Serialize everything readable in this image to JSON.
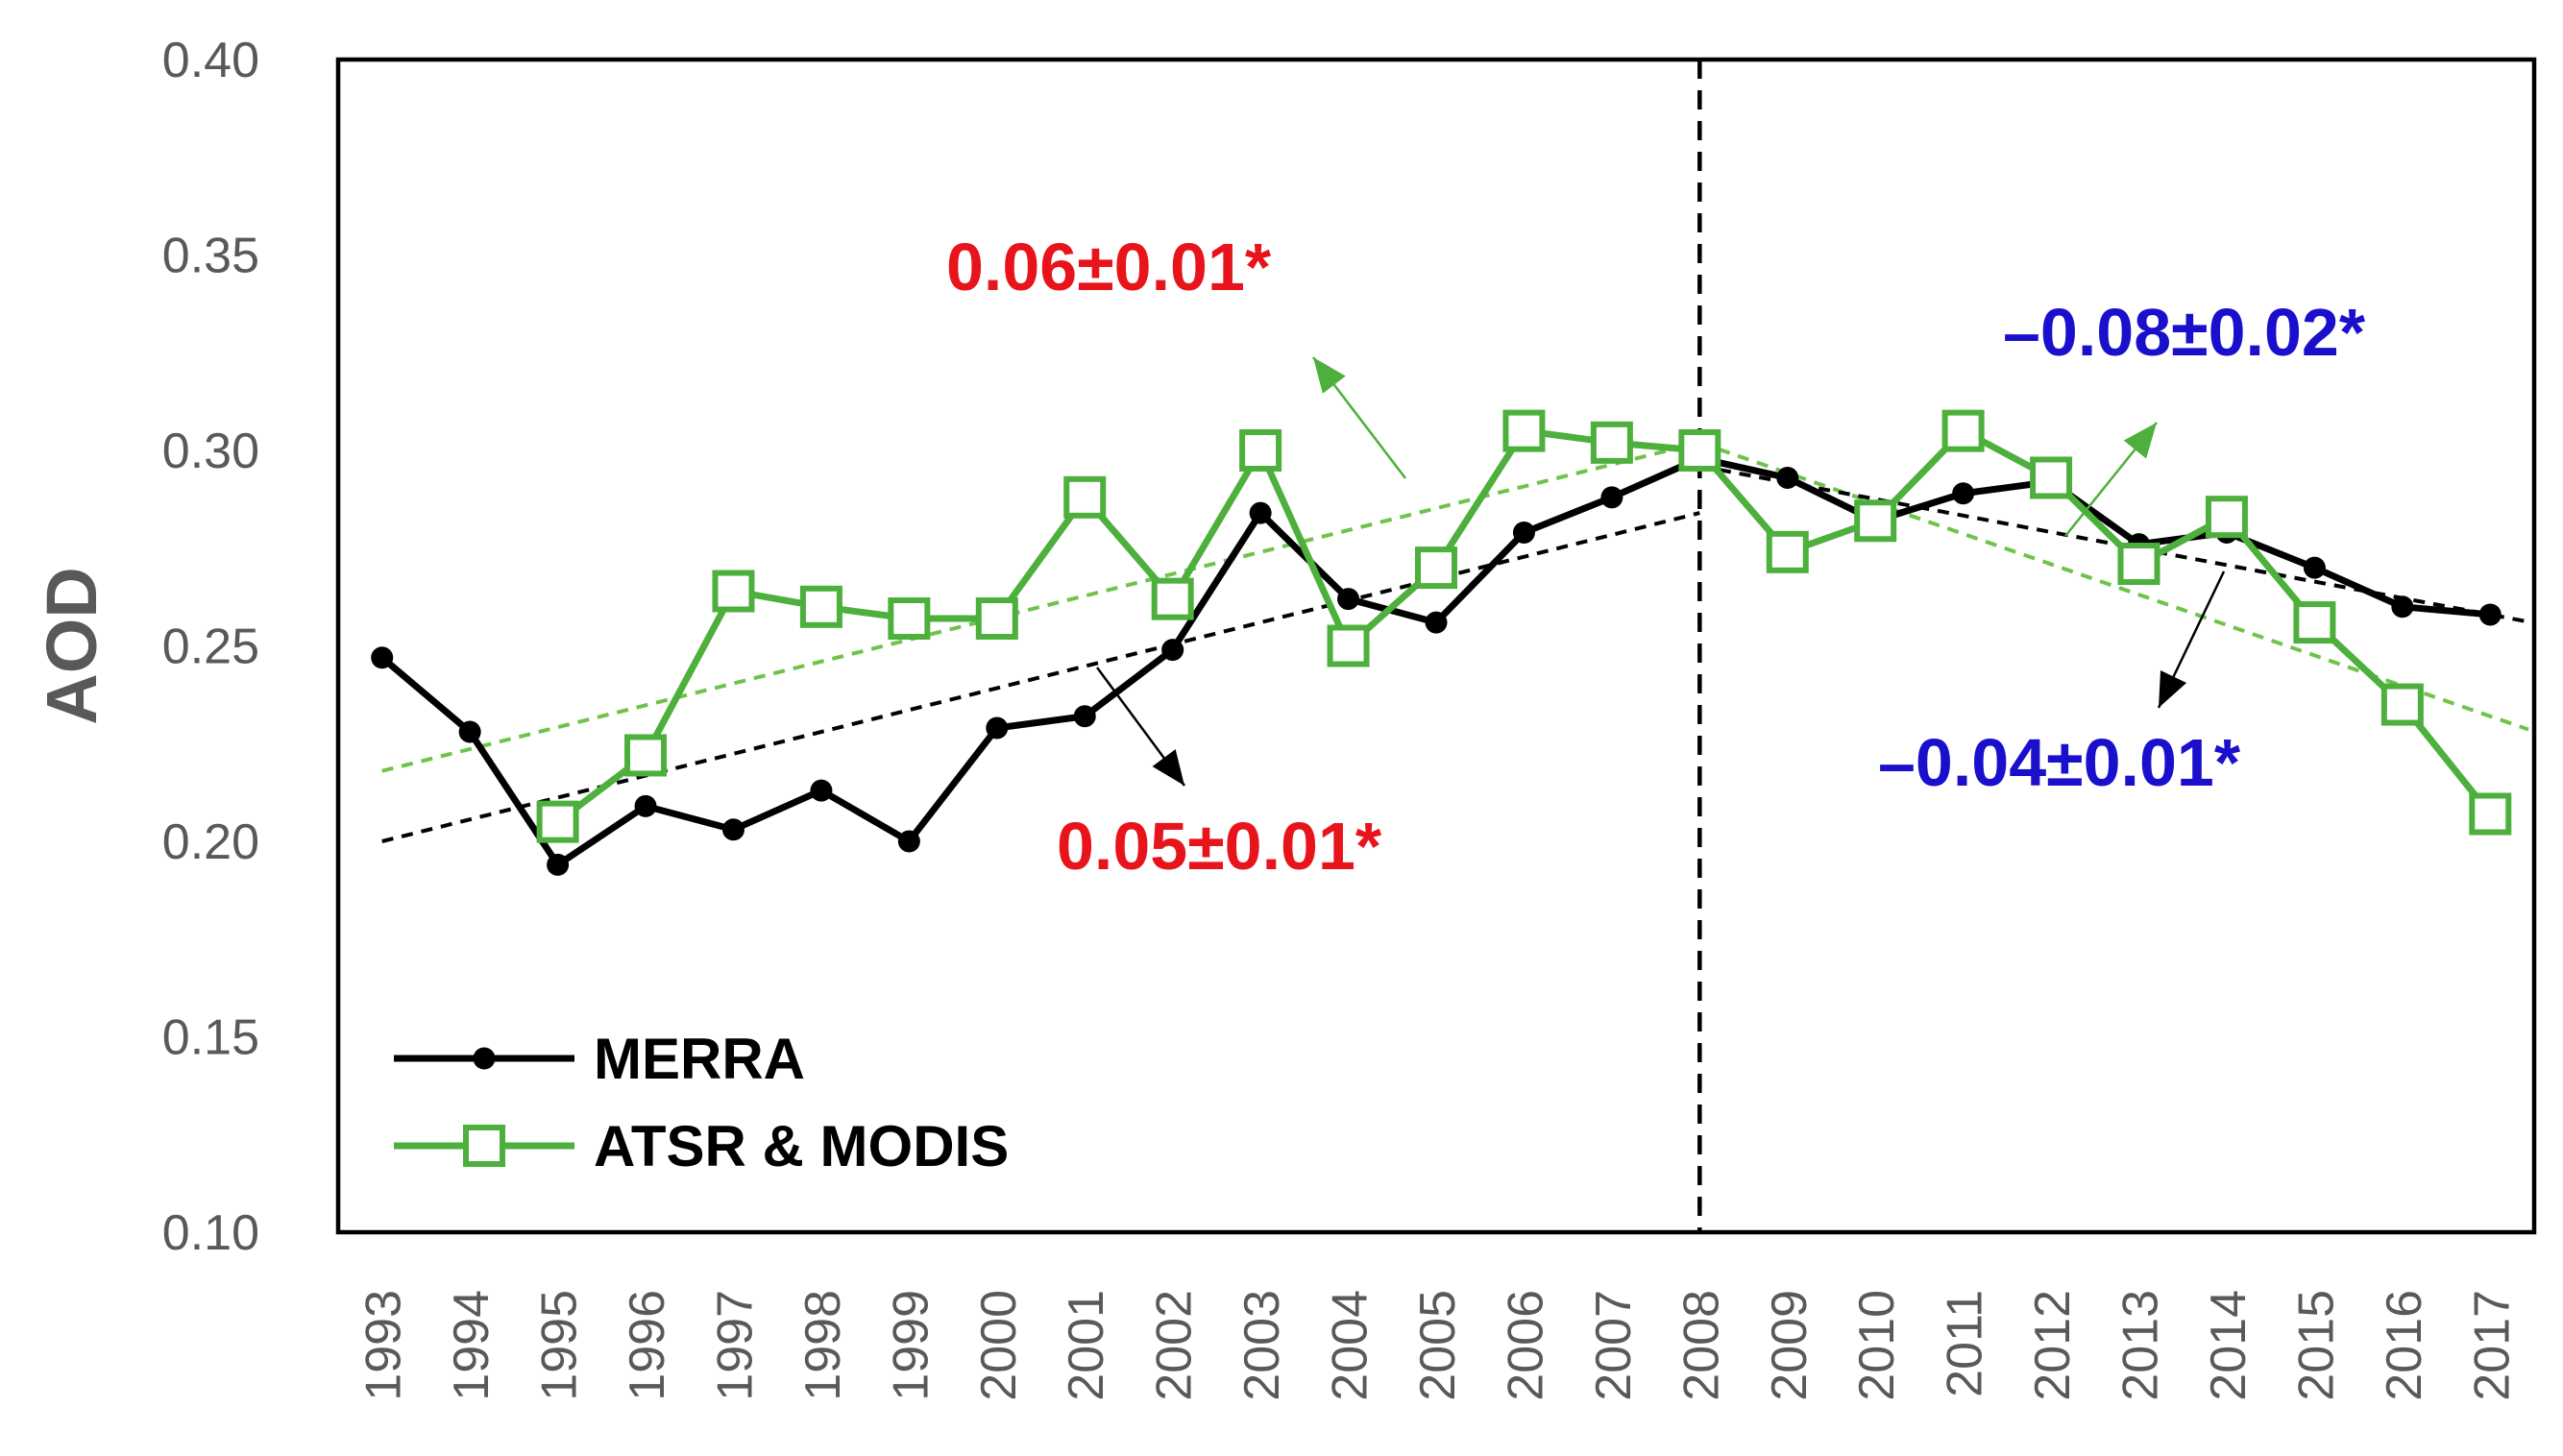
{
  "chart_data": {
    "type": "line",
    "title": "",
    "xlabel": "",
    "ylabel": "AOD",
    "ylim": [
      0.1,
      0.4
    ],
    "yticks": [
      "0.10",
      "0.15",
      "0.20",
      "0.25",
      "0.30",
      "0.35",
      "0.40"
    ],
    "categories": [
      "1993",
      "1994",
      "1995",
      "1996",
      "1997",
      "1998",
      "1999",
      "2000",
      "2001",
      "2002",
      "2003",
      "2004",
      "2005",
      "2006",
      "2007",
      "2008",
      "2009",
      "2010",
      "2011",
      "2012",
      "2013",
      "2014",
      "2015",
      "2016",
      "2017"
    ],
    "series": [
      {
        "name": "MERRA",
        "color": "#000000",
        "marker": "filled-circle",
        "values": [
          0.247,
          0.228,
          0.194,
          0.209,
          0.203,
          0.213,
          0.2,
          0.229,
          0.232,
          0.249,
          0.284,
          0.262,
          0.256,
          0.279,
          0.288,
          0.298,
          0.293,
          0.282,
          0.289,
          0.292,
          0.276,
          0.279,
          0.27,
          0.26,
          0.258
        ]
      },
      {
        "name": "ATSR & MODIS",
        "color": "#4DAF3C",
        "marker": "open-square",
        "values": [
          null,
          null,
          0.205,
          0.222,
          0.264,
          0.26,
          0.257,
          0.257,
          0.288,
          0.262,
          0.3,
          0.25,
          0.27,
          0.305,
          0.302,
          0.3,
          0.274,
          0.282,
          0.305,
          0.293,
          0.271,
          0.283,
          0.256,
          0.235,
          0.207
        ]
      }
    ],
    "trend_lines": [
      {
        "series": "ATSR & MODIS",
        "color": "#6FC34B",
        "from_year": "1993",
        "to_year": "2008",
        "start": 0.218,
        "end": 0.302
      },
      {
        "series": "MERRA",
        "color": "#000000",
        "from_year": "1993",
        "to_year": "2008",
        "start": 0.2,
        "end": 0.284
      },
      {
        "series": "ATSR & MODIS",
        "color": "#6FC34B",
        "from_year": "2008",
        "to_year": "2017",
        "start": 0.302,
        "end": 0.232
      },
      {
        "series": "MERRA",
        "color": "#000000",
        "from_year": "2008",
        "to_year": "2017",
        "start": 0.296,
        "end": 0.258
      }
    ],
    "divider_year": "2008",
    "annotations": [
      {
        "text": "0.06±0.01*",
        "color": "#E8141C",
        "refers_to": "ATSR & MODIS trend 1993-2008"
      },
      {
        "text": "0.05±0.01*",
        "color": "#E8141C",
        "refers_to": "MERRA trend 1993-2008"
      },
      {
        "text": "–0.08±0.02*",
        "color": "#1A10CC",
        "refers_to": "ATSR & MODIS trend 2008-2017"
      },
      {
        "text": "–0.04±0.01*",
        "color": "#1A10CC",
        "refers_to": "MERRA trend 2008-2017"
      }
    ],
    "legend": {
      "placement": "bottom-left",
      "entries": [
        "MERRA",
        "ATSR & MODIS"
      ]
    }
  }
}
